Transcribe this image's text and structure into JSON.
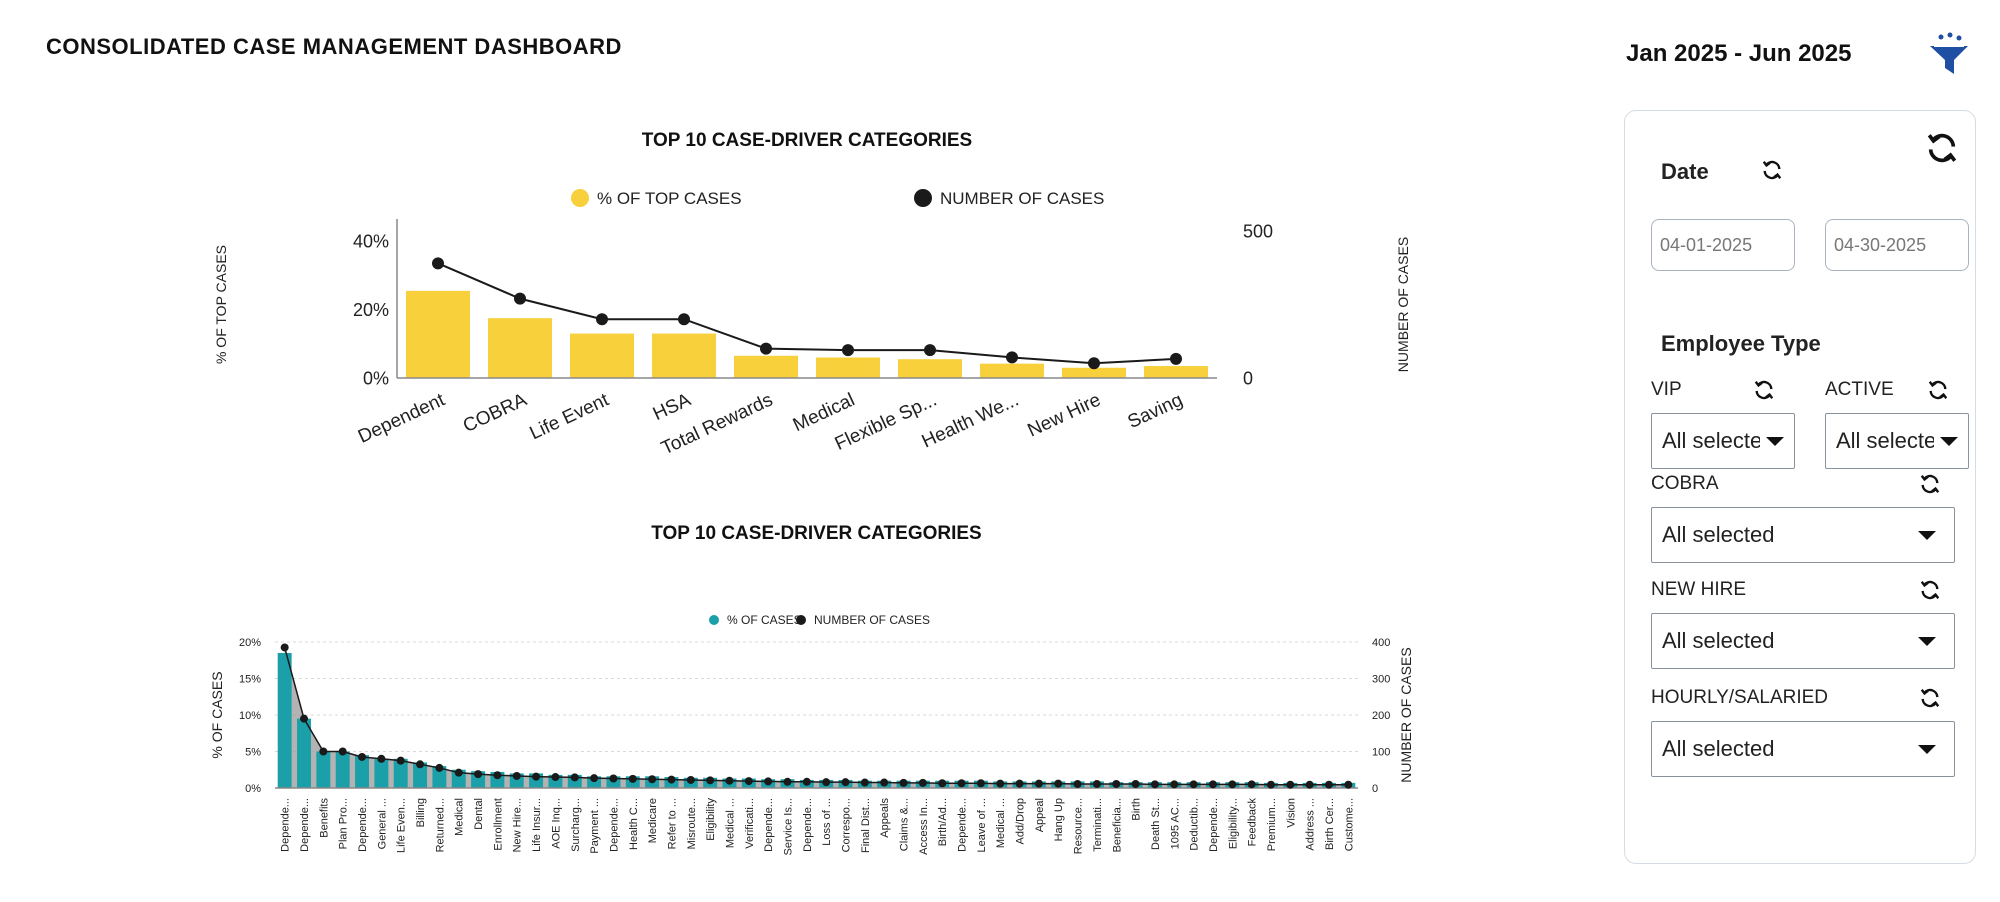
{
  "page": {
    "title": "CONSOLIDATED CASE MANAGEMENT DASHBOARD",
    "date_range": "Jan 2025 - Jun 2025",
    "icons": {
      "filter": "filter-funnel-icon",
      "refresh": "refresh-icon"
    }
  },
  "colors": {
    "yellow": "#F7D03C",
    "teal": "#1B9FA9",
    "dark": "#1a1a1a",
    "area": "#9a9a9a",
    "panel_border": "#d6dce4",
    "icon_blue": "#1f4fa3"
  },
  "filters": {
    "date": {
      "label": "Date",
      "start_value": "04-01-2025",
      "end_value": "04-30-2025"
    },
    "employee_type_label": "Employee Type",
    "vip": {
      "label": "VIP",
      "value": "All selected"
    },
    "active": {
      "label": "ACTIVE",
      "value": "All selected"
    },
    "cobra": {
      "label": "COBRA",
      "value": "All selected"
    },
    "new_hire": {
      "label": "NEW HIRE",
      "value": "All selected"
    },
    "hourly_salaried": {
      "label": "HOURLY/SALARIED",
      "value": "All selected"
    }
  },
  "chart_data": [
    {
      "type": "bar",
      "title": "TOP 10 CASE-DRIVER CATEGORIES",
      "categories": [
        "Dependent",
        "COBRA",
        "Life Event",
        "HSA",
        "Total Rewards",
        "Medical",
        "Flexible Sp...",
        "Health We...",
        "New Hire",
        "Saving"
      ],
      "series": [
        {
          "name": "% OF TOP CASES",
          "kind": "bar",
          "axis": "left",
          "values": [
            25.5,
            17.5,
            13,
            13,
            6.5,
            6,
            5.5,
            4.2,
            3,
            3.5
          ]
        },
        {
          "name": "NUMBER OF CASES",
          "kind": "line",
          "axis": "right",
          "values": [
            390,
            270,
            200,
            200,
            100,
            95,
            95,
            70,
            50,
            65
          ]
        }
      ],
      "ylabel": "% OF TOP CASES",
      "y2label": "NUMBER OF CASES",
      "ylim": [
        0,
        0.43
      ],
      "y2lim": [
        0,
        500
      ],
      "yticks": [
        0,
        0.2,
        0.4
      ],
      "ytick_labels": [
        "0%",
        "20%",
        "40%"
      ],
      "y2ticks": [
        0,
        500
      ],
      "y2tick_labels": [
        "0",
        "500"
      ],
      "legend": "top"
    },
    {
      "type": "bar",
      "title": "TOP 10 CASE-DRIVER CATEGORIES",
      "categories": [
        "Depende...",
        "Depende...",
        "Benefits",
        "Plan Pro...",
        "Depende...",
        "General ...",
        "Life Even...",
        "Billing",
        "Returned...",
        "Medical",
        "Dental",
        "Enrollment",
        "New Hire...",
        "Life Insur...",
        "AOE Inq...",
        "Surcharg...",
        "Payment ...",
        "Depende...",
        "Health C...",
        "Medicare",
        "Refer to ...",
        "Misroute...",
        "Eligibility",
        "Medical ...",
        "Verificati...",
        "Depende...",
        "Service Is...",
        "Depende...",
        "Loss of ...",
        "Correspo...",
        "Final Dist...",
        "Appeals",
        "Claims &...",
        "Access In...",
        "Birth/Ad...",
        "Depende...",
        "Leave of ...",
        "Medical ...",
        "Add/Drop",
        "Appeal",
        "Hang Up",
        "Resource...",
        "Terminati...",
        "Beneficia...",
        "Birth",
        "Death St...",
        "1095 AC...",
        "Deductib...",
        "Depende...",
        "Eligibility...",
        "Feedback",
        "Premium...",
        "Vision",
        "Address ...",
        "Birth Cer...",
        "Custome..."
      ],
      "series": [
        {
          "name": "% OF CASES",
          "kind": "bar",
          "axis": "left",
          "values": [
            18.5,
            9.5,
            5,
            5,
            4.5,
            4,
            4,
            3.5,
            3,
            2.5,
            2.3,
            2.2,
            2,
            2,
            1.8,
            1.8,
            1.6,
            1.6,
            1.6,
            1.6,
            1.5,
            1.4,
            1.4,
            1.3,
            1.3,
            1.2,
            1.2,
            1.1,
            1.1,
            1.1,
            1,
            1,
            1,
            1,
            1,
            1,
            1,
            0.9,
            0.9,
            0.9,
            0.9,
            0.9,
            0.9,
            0.8,
            0.8,
            0.8,
            0.8,
            0.8,
            0.8,
            0.8,
            0.8,
            0.7,
            0.7,
            0.7,
            0.7,
            0.7
          ]
        },
        {
          "name": "NUMBER OF CASES",
          "kind": "line-area",
          "axis": "right",
          "values": [
            385,
            190,
            100,
            100,
            85,
            80,
            75,
            65,
            55,
            42,
            38,
            35,
            33,
            31,
            30,
            29,
            27,
            26,
            25,
            24,
            23,
            22,
            21,
            20,
            19,
            18,
            17,
            17,
            16,
            16,
            15,
            15,
            14,
            14,
            13,
            13,
            13,
            12,
            12,
            12,
            12,
            11,
            11,
            11,
            11,
            10,
            10,
            10,
            10,
            10,
            10,
            9,
            9,
            9,
            9,
            9
          ]
        }
      ],
      "ylabel": "% OF CASES",
      "y2label": "NUMBER OF CASES",
      "ylim": [
        0,
        0.2
      ],
      "y2lim": [
        0,
        400
      ],
      "yticks": [
        0,
        0.05,
        0.1,
        0.15,
        0.2
      ],
      "ytick_labels": [
        "0%",
        "5%",
        "10%",
        "15%",
        "20%"
      ],
      "y2ticks": [
        0,
        100,
        200,
        300,
        400
      ],
      "y2tick_labels": [
        "0",
        "100",
        "200",
        "300",
        "400"
      ],
      "grid": true,
      "legend": "top"
    }
  ]
}
